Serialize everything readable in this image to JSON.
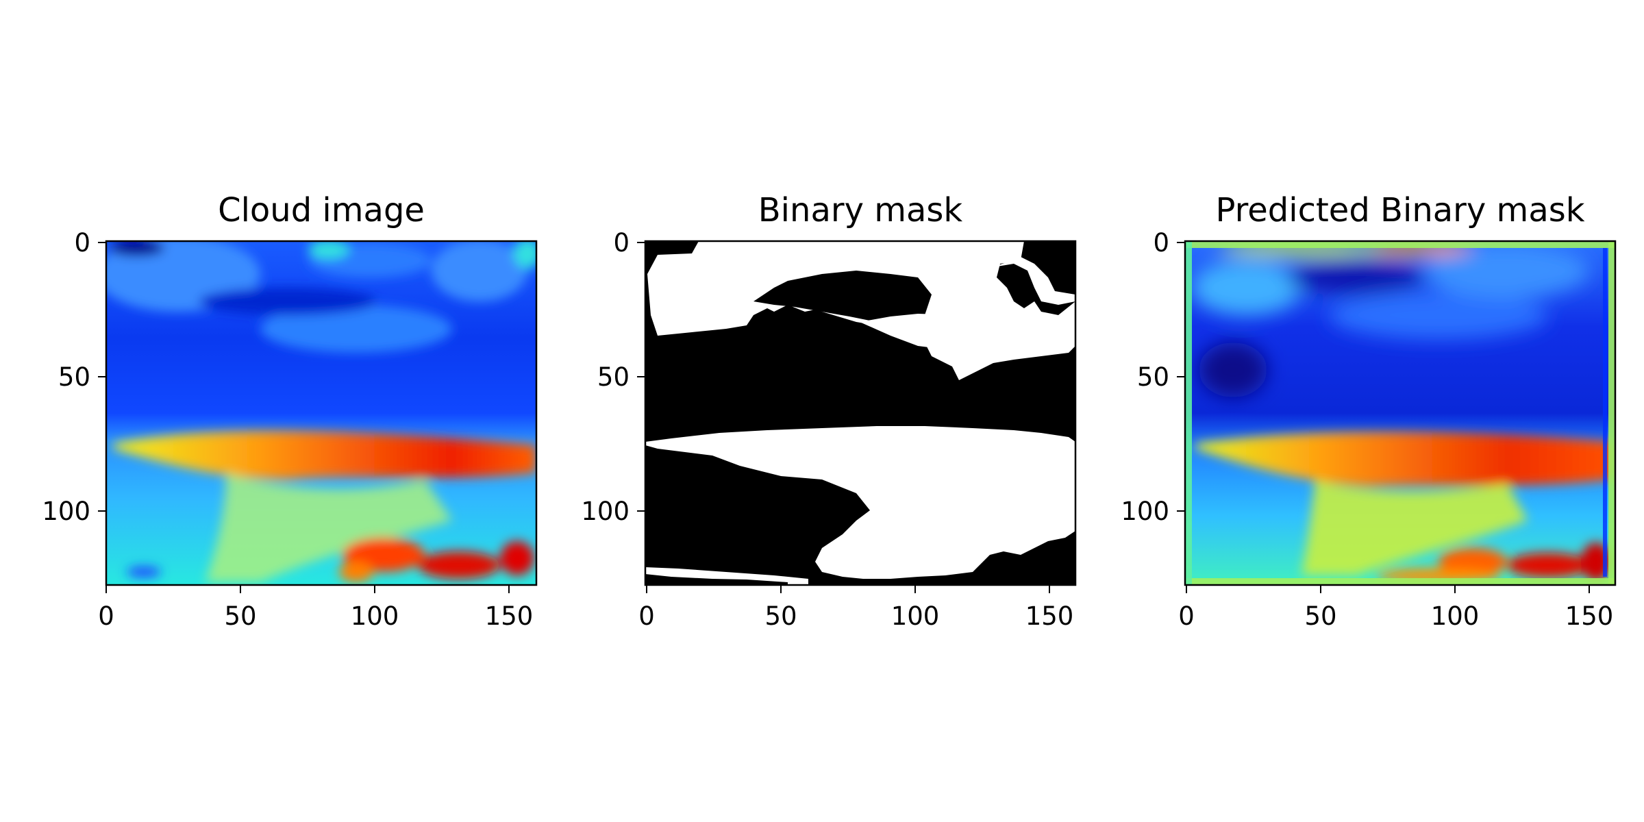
{
  "chart_data": [
    {
      "type": "heatmap",
      "title": "Cloud image",
      "colormap": "jet",
      "xlim": [
        0,
        160
      ],
      "ylim": [
        128,
        0
      ],
      "xticks": [
        0,
        50,
        100,
        150
      ],
      "yticks": [
        0,
        50,
        100
      ],
      "xtick_labels": [
        "0",
        "50",
        "100",
        "150"
      ],
      "ytick_labels": [
        "0",
        "50",
        "100"
      ],
      "grid": false
    },
    {
      "type": "heatmap",
      "title": "Binary mask",
      "colormap": "gray",
      "xlim": [
        0,
        160
      ],
      "ylim": [
        128,
        0
      ],
      "xticks": [
        0,
        50,
        100,
        150
      ],
      "yticks": [
        0,
        50,
        100
      ],
      "xtick_labels": [
        "0",
        "50",
        "100",
        "150"
      ],
      "ytick_labels": [
        "0",
        "50",
        "100"
      ],
      "grid": false
    },
    {
      "type": "heatmap",
      "title": "Predicted Binary mask",
      "colormap": "jet",
      "xlim": [
        0,
        160
      ],
      "ylim": [
        128,
        0
      ],
      "xticks": [
        0,
        50,
        100,
        150
      ],
      "yticks": [
        0,
        50,
        100
      ],
      "xtick_labels": [
        "0",
        "50",
        "100",
        "150"
      ],
      "ytick_labels": [
        "0",
        "50",
        "100"
      ],
      "grid": false
    }
  ],
  "colors": {
    "jet_dark_blue": "#00008f",
    "jet_blue": "#0040ff",
    "jet_light_blue": "#30a0ff",
    "jet_cyan": "#20f0e0",
    "jet_yellow": "#f0f020",
    "jet_orange": "#ff8000",
    "jet_red": "#e00000",
    "mask_black": "#000000",
    "mask_white": "#ffffff"
  }
}
